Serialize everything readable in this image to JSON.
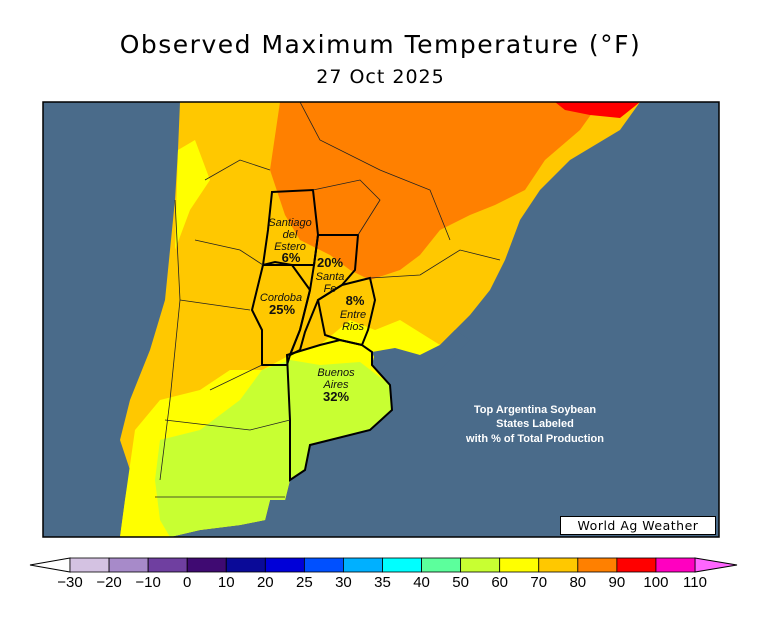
{
  "title": "Observed Maximum Temperature (°F)",
  "date": "27 Oct 2025",
  "credit": "World Ag Weather",
  "annotation": [
    "Top Argentina Soybean",
    "States Labeled",
    "with % of Total Production"
  ],
  "states": [
    {
      "name_lines": [
        "Santiago",
        "del",
        "Estero"
      ],
      "pct": "6%"
    },
    {
      "name_lines": [
        "Santa",
        "Fe"
      ],
      "pct": "20%"
    },
    {
      "name_lines": [
        "Cordoba"
      ],
      "pct": "25%"
    },
    {
      "name_lines": [
        "Entre",
        "Rios"
      ],
      "pct": "8%"
    },
    {
      "name_lines": [
        "Buenos",
        "Aires"
      ],
      "pct": "32%"
    }
  ],
  "legend": {
    "labels": [
      "−30",
      "−20",
      "−10",
      "0",
      "10",
      "20",
      "25",
      "30",
      "35",
      "40",
      "50",
      "60",
      "70",
      "80",
      "90",
      "100",
      "110"
    ],
    "colors": [
      "#d4c2e2",
      "#a78ac9",
      "#6f3fa0",
      "#3f0a72",
      "#0a0a98",
      "#0000d8",
      "#0050ff",
      "#00b0ff",
      "#00ffff",
      "#5cff9c",
      "#c8ff32",
      "#ffff00",
      "#ffc800",
      "#ff8000",
      "#ff0000",
      "#ff00c0"
    ],
    "low_arrow_color": "#ffffff",
    "high_arrow_color": "#ff66ff"
  },
  "colors": {
    "ocean": "#4a6b8a"
  }
}
